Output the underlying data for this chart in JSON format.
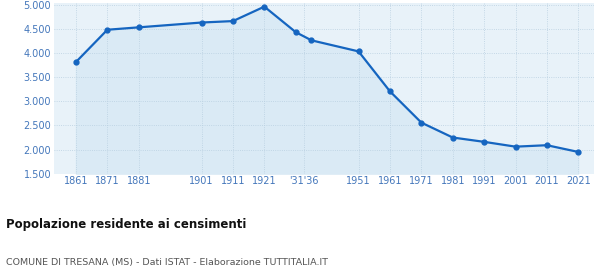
{
  "years": [
    1861,
    1871,
    1881,
    1901,
    1911,
    1921,
    1931,
    1936,
    1951,
    1961,
    1971,
    1981,
    1991,
    2001,
    2011,
    2021
  ],
  "population": [
    3820,
    4490,
    4540,
    4640,
    4670,
    4970,
    4440,
    4270,
    4040,
    3210,
    2560,
    2250,
    2160,
    2060,
    2090,
    1950
  ],
  "ylim": [
    1500,
    5050
  ],
  "yticks": [
    1500,
    2000,
    2500,
    3000,
    3500,
    4000,
    4500,
    5000
  ],
  "line_color": "#1565c0",
  "fill_color": "#daeaf5",
  "marker_color": "#1565c0",
  "grid_color": "#b8cfe0",
  "background_color": "#e8f2f9",
  "title": "Popolazione residente ai censimenti",
  "subtitle": "COMUNE DI TRESANA (MS) - Dati ISTAT - Elaborazione TUTTITALIA.IT",
  "title_color": "#111111",
  "subtitle_color": "#555555",
  "label_color": "#4477bb",
  "xlim_left": 1854,
  "xlim_right": 2026
}
